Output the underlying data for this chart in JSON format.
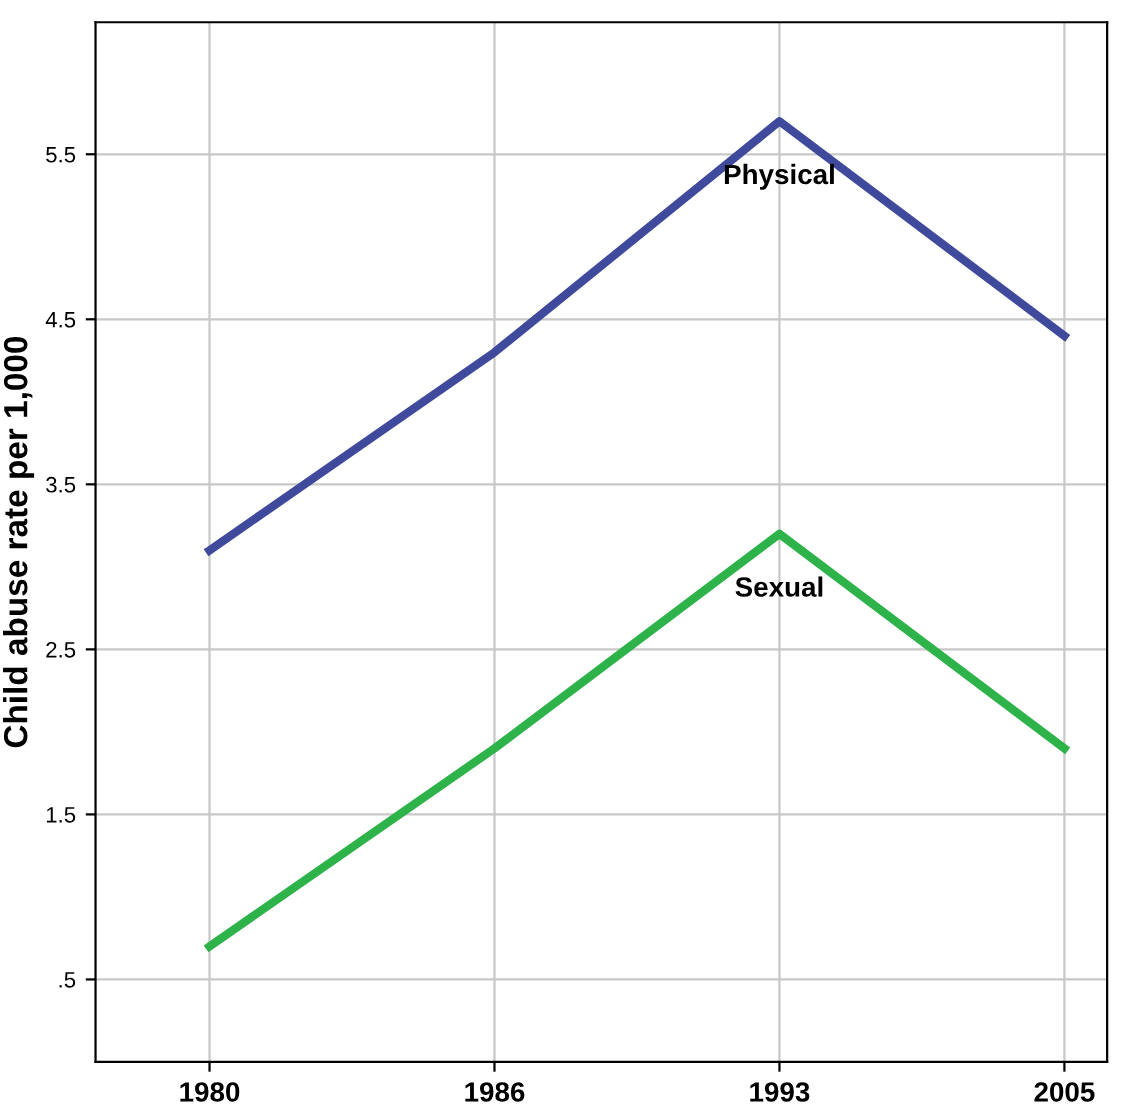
{
  "chart_data": {
    "type": "line",
    "ylabel": "Child abuse rate per 1,000",
    "categories": [
      "1980",
      "1986",
      "1993",
      "2005"
    ],
    "series": [
      {
        "name": "Physical",
        "color": "#3f4a9c",
        "values": [
          3.1,
          4.3,
          5.7,
          4.4
        ]
      },
      {
        "name": "Sexual",
        "color": "#2eb34a",
        "values": [
          0.7,
          1.9,
          3.2,
          1.9
        ]
      }
    ],
    "ylim": [
      0.0,
      6.3
    ],
    "yticks": [
      {
        "value": 0.5,
        "label": ".5"
      },
      1.5,
      2.5,
      3.5,
      4.5,
      5.5
    ],
    "grid": true,
    "legend": false,
    "marker": "none",
    "line_style": "solid"
  }
}
